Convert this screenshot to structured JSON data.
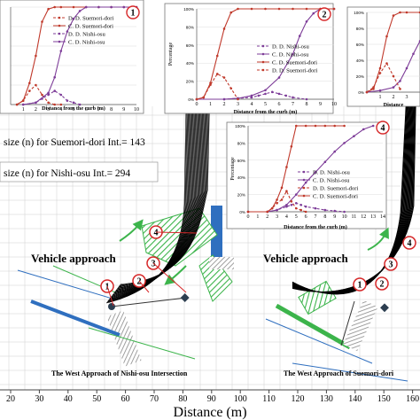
{
  "figure": {
    "xlabel": "Distance (m)",
    "x_ticks": [
      "20",
      "30",
      "40",
      "50",
      "60",
      "70",
      "80",
      "90",
      "100",
      "110",
      "120",
      "130",
      "140",
      "150",
      "160"
    ],
    "approach_labels": [
      "Vehicle approach",
      "Vehicle approach"
    ],
    "captions": [
      "The West Approach of Nishi-osu Intersection",
      "The West Approach of Suemori-dori"
    ],
    "sample_sizes": [
      "size (n) for Suemori-dori Int.= 143",
      "size (n) for Nishi-osu Int.= 294"
    ],
    "location_markers_left": [
      "1",
      "2",
      "3",
      "4"
    ],
    "location_markers_right": [
      "1",
      "2",
      "3",
      "4"
    ]
  },
  "chart_data": [
    {
      "type": "line",
      "panel": "1",
      "xlabel": "Distance from the curb (m)",
      "ylabel": "",
      "xlim": [
        0,
        10
      ],
      "ylim": [
        0,
        100
      ],
      "x_ticks": [
        "1",
        "2",
        "3",
        "4",
        "5",
        "6",
        "7",
        "8",
        "9",
        "10"
      ],
      "y_ticks": [],
      "legend": "top-right",
      "series": [
        {
          "name": "D. D. Suemori-dori",
          "color": "#c0392b",
          "style": "dash",
          "x": [
            0.5,
            1,
            1.5,
            2,
            2.5,
            3,
            3.5,
            4
          ],
          "values": [
            0,
            4,
            14,
            20,
            10,
            2,
            0,
            0
          ]
        },
        {
          "name": "C. D. Suemori-dori",
          "color": "#c0392b",
          "style": "solid",
          "x": [
            0.5,
            1,
            1.5,
            2,
            2.5,
            3,
            3.5,
            4,
            5,
            6,
            7,
            8,
            9,
            10
          ],
          "values": [
            0,
            4,
            22,
            50,
            85,
            98,
            100,
            100,
            100,
            100,
            100,
            100,
            100,
            100
          ]
        },
        {
          "name": "D. D. Nishi-osu",
          "color": "#7d3c98",
          "style": "dash",
          "x": [
            1,
            2,
            2.5,
            3,
            3.5,
            4,
            4.5,
            5,
            5.5
          ],
          "values": [
            0,
            2,
            6,
            10,
            14,
            10,
            4,
            2,
            0
          ]
        },
        {
          "name": "C. D. Nishi-osu",
          "color": "#7d3c98",
          "style": "solid",
          "x": [
            1,
            2,
            3,
            3.5,
            4,
            4.5,
            5,
            5.5,
            6,
            7,
            8,
            9,
            10
          ],
          "values": [
            0,
            2,
            12,
            28,
            55,
            75,
            88,
            96,
            100,
            100,
            100,
            100,
            100
          ]
        }
      ]
    },
    {
      "type": "line",
      "panel": "2",
      "xlabel": "Distance from the curb (m)",
      "ylabel": "Percentage",
      "xlim": [
        0,
        10
      ],
      "ylim": [
        0,
        100
      ],
      "x_ticks": [
        "0",
        "1",
        "2",
        "3",
        "4",
        "5",
        "6",
        "7",
        "8",
        "9",
        "10"
      ],
      "y_ticks": [
        "0%",
        "20%",
        "40%",
        "60%",
        "80%",
        "100%"
      ],
      "legend": "right",
      "series": [
        {
          "name": "D. D. Nishi-osu",
          "color": "#7d3c98",
          "style": "dash",
          "x": [
            0,
            2,
            3,
            4,
            4.5,
            5,
            5.5,
            6,
            6.5,
            7,
            8
          ],
          "values": [
            0,
            0,
            1,
            2,
            4,
            6,
            8,
            6,
            4,
            2,
            0
          ]
        },
        {
          "name": "C. D. Nishi-osu",
          "color": "#7d3c98",
          "style": "solid",
          "x": [
            0,
            2,
            3,
            4,
            5,
            6,
            7,
            7.5,
            8,
            8.5,
            9,
            10
          ],
          "values": [
            0,
            0,
            1,
            4,
            10,
            24,
            50,
            70,
            86,
            95,
            100,
            100
          ]
        },
        {
          "name": "C. D. Suemori-dori",
          "color": "#c0392b",
          "style": "solid",
          "x": [
            0,
            0.5,
            1,
            1.5,
            2,
            2.5,
            3,
            4,
            5,
            6,
            7,
            8,
            9,
            10
          ],
          "values": [
            0,
            2,
            18,
            48,
            78,
            96,
            100,
            100,
            100,
            100,
            100,
            100,
            100,
            100
          ]
        },
        {
          "name": "D. D. Suemori-dori",
          "color": "#c0392b",
          "style": "dash",
          "x": [
            0,
            0.5,
            1,
            1.5,
            2,
            2.5,
            3
          ],
          "values": [
            0,
            2,
            16,
            28,
            24,
            12,
            0
          ]
        }
      ]
    },
    {
      "type": "line",
      "panel": "3",
      "xlabel": "Distance",
      "ylabel": "",
      "xlim": [
        0,
        4
      ],
      "ylim": [
        0,
        100
      ],
      "x_ticks": [
        "1",
        "2",
        "3"
      ],
      "y_ticks": [
        "0%",
        "20%",
        "40%",
        "60%",
        "80%",
        "100%"
      ],
      "legend": "none",
      "series": [
        {
          "name": "",
          "color": "#c0392b",
          "style": "solid",
          "x": [
            0,
            0.5,
            1,
            1.5,
            2,
            2.5,
            3,
            4
          ],
          "values": [
            0,
            4,
            30,
            70,
            96,
            100,
            100,
            100
          ]
        },
        {
          "name": "",
          "color": "#7d3c98",
          "style": "solid",
          "x": [
            0,
            1,
            2,
            2.5,
            3,
            3.5,
            4
          ],
          "values": [
            0,
            2,
            6,
            14,
            30,
            48,
            64
          ]
        },
        {
          "name": "",
          "color": "#c0392b",
          "style": "dash",
          "x": [
            0,
            0.5,
            1,
            1.5,
            2,
            2.5
          ],
          "values": [
            0,
            6,
            24,
            36,
            20,
            4
          ]
        }
      ]
    },
    {
      "type": "line",
      "panel": "4",
      "xlabel": "Distance from the curb (m)",
      "ylabel": "Percentage",
      "xlim": [
        0,
        14
      ],
      "ylim": [
        0,
        100
      ],
      "x_ticks": [
        "0",
        "1",
        "2",
        "3",
        "4",
        "5",
        "6",
        "7",
        "8",
        "9",
        "10",
        "11",
        "12",
        "13",
        "14"
      ],
      "y_ticks": [
        "0%",
        "20%",
        "40%",
        "60%",
        "80%",
        "100%"
      ],
      "legend": "bottom-right",
      "series": [
        {
          "name": "D. D. Nishi-osu",
          "color": "#7d3c98",
          "style": "dash",
          "x": [
            0,
            2,
            3,
            4,
            4.5,
            5,
            5.5,
            6,
            7,
            8,
            9,
            10
          ],
          "values": [
            0,
            0,
            2,
            6,
            8,
            10,
            8,
            6,
            4,
            2,
            1,
            0
          ]
        },
        {
          "name": "C. D. Nishi-osu",
          "color": "#7d3c98",
          "style": "solid",
          "x": [
            0,
            2,
            3,
            4,
            5,
            6,
            7,
            8,
            9,
            10,
            11,
            12,
            13
          ],
          "values": [
            0,
            0,
            2,
            8,
            20,
            34,
            46,
            58,
            70,
            80,
            88,
            96,
            100
          ]
        },
        {
          "name": "D. D. Suemori-dori",
          "color": "#c0392b",
          "style": "dash",
          "x": [
            0,
            2,
            2.5,
            3,
            3.5,
            4,
            4.5,
            5,
            5.5,
            6
          ],
          "values": [
            0,
            0,
            4,
            10,
            14,
            24,
            12,
            4,
            2,
            0
          ]
        },
        {
          "name": "C. D. Suemori-dori",
          "color": "#c0392b",
          "style": "solid",
          "x": [
            0,
            2,
            2.5,
            3,
            3.5,
            4,
            4.5,
            5,
            6,
            7,
            8,
            9,
            10
          ],
          "values": [
            0,
            0,
            4,
            14,
            28,
            52,
            76,
            100,
            100,
            100,
            100,
            100,
            100
          ]
        }
      ]
    }
  ]
}
